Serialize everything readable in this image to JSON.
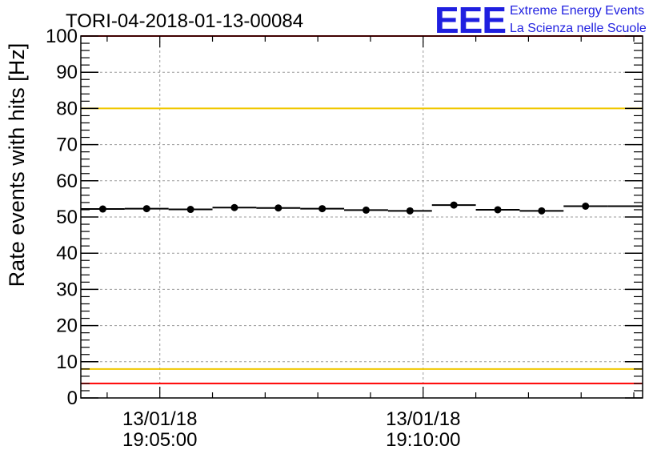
{
  "chart_data": {
    "type": "scatter",
    "title": "TORI-04-2018-01-13-00084",
    "ylabel": "Rate events with hits [Hz]",
    "xlabel": "",
    "ylim": [
      0,
      100
    ],
    "yticks": [
      0,
      10,
      20,
      30,
      40,
      50,
      60,
      70,
      80,
      90,
      100
    ],
    "xlim": [
      "13/01/18 19:03:30",
      "13/01/18 19:14:10"
    ],
    "xticks": [
      {
        "date": "13/01/18",
        "time": "19:05:00"
      },
      {
        "date": "13/01/18",
        "time": "19:10:00"
      }
    ],
    "grid": true,
    "bin_width_seconds": 50,
    "series": [
      {
        "x": [
          "19:03:55",
          "19:04:45",
          "19:05:35",
          "19:06:25",
          "19:07:15",
          "19:08:05",
          "19:08:55",
          "19:09:45",
          "19:10:35",
          "19:11:25",
          "19:12:15",
          "19:13:05",
          "19:13:55"
        ],
        "values": [
          52.2,
          52.3,
          52.1,
          52.6,
          52.5,
          52.3,
          51.9,
          51.7,
          53.3,
          52.0,
          51.7,
          53.0,
          53.0
        ],
        "markers": [
          true,
          true,
          true,
          true,
          true,
          true,
          true,
          true,
          true,
          true,
          true,
          true,
          false
        ]
      }
    ],
    "reference_lines": [
      {
        "y": 100,
        "color": "#ff0000"
      },
      {
        "y": 80,
        "color": "#f0c800"
      },
      {
        "y": 8,
        "color": "#f0c800"
      },
      {
        "y": 4,
        "color": "#ff0000"
      }
    ]
  },
  "logo": {
    "letters": "EEE",
    "line1": "Extreme Energy Events",
    "line2": "La Scienza nelle Scuole",
    "color": "#1f1fe0"
  }
}
